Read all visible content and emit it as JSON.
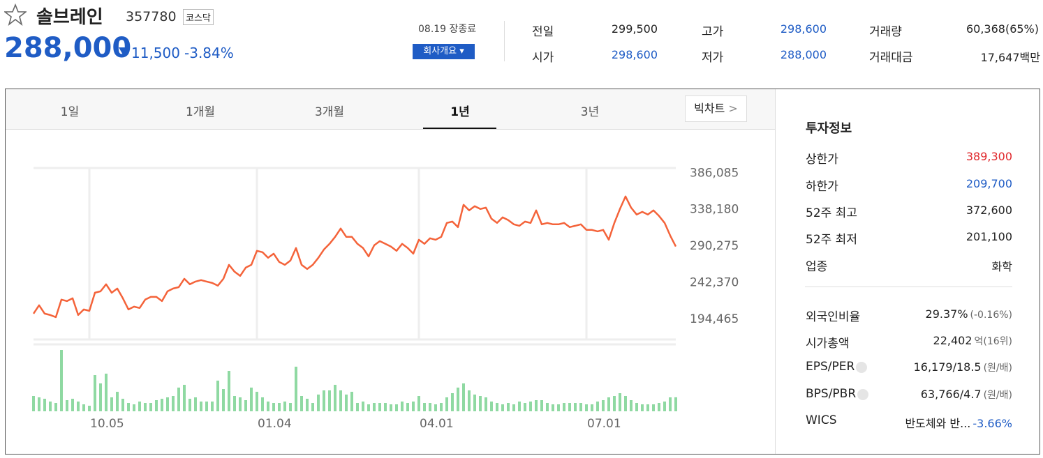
{
  "header": {
    "name": "솔브레인",
    "code": "357780",
    "market": "코스닥",
    "price": "288,000",
    "change": "11,500",
    "change_rate": "-3.84%"
  },
  "status": "08.19 장종료",
  "company_button": "회사개요",
  "quote": [
    {
      "label": "전일",
      "value": "299,500"
    },
    {
      "label": "시가",
      "value": "298,600"
    },
    {
      "label": "고가",
      "value": "298,600"
    },
    {
      "label": "저가",
      "value": "288,000"
    },
    {
      "label": "거래량",
      "value": "60,368(65%)"
    },
    {
      "label": "거래대금",
      "value": "17,647",
      "unit": "백만"
    }
  ],
  "chart_tabs": {
    "tabs": [
      "1일",
      "1개월",
      "3개월",
      "1년",
      "3년"
    ],
    "active": 3,
    "big_chart": "빅차트"
  },
  "chart_data": {
    "type": "line",
    "series": [
      {
        "color": "#f4633a",
        "values": [
          199900,
          210900,
          199900,
          198100,
          195400,
          218300,
          216400,
          220100,
          198100,
          205400,
          203600,
          227400,
          229200,
          238400,
          227400,
          232900,
          220100,
          205400,
          209100,
          207300,
          218300,
          221900,
          221900,
          216400,
          229200,
          232900,
          234700,
          245700,
          238400,
          242000,
          243900,
          242000,
          240200,
          236600,
          245700,
          264000,
          254900,
          249400,
          260300,
          264000,
          282300,
          280500,
          273200,
          278600,
          267700,
          264000,
          269500,
          286000,
          264000,
          258500,
          264000,
          273200,
          284100,
          291500,
          300600,
          311600,
          300600,
          300600,
          291500,
          286000,
          275000,
          289600,
          295100,
          291500,
          287800,
          282300,
          291500,
          286000,
          278600,
          296900,
          291500,
          298800,
          296900,
          300600,
          318900,
          320700,
          313400,
          342700,
          335400,
          340900,
          337200,
          339000,
          324400,
          318900,
          326200,
          322600,
          317100,
          315200,
          320700,
          318900,
          335400,
          317100,
          318900,
          317100,
          317100,
          318900,
          313400,
          315200,
          317100,
          309800,
          309800,
          307900,
          309800,
          296900,
          318900,
          337200,
          353700,
          339000,
          329900,
          333500,
          329900,
          335400,
          328100,
          318900,
          302400,
          288000
        ]
      },
      {
        "type": "bar",
        "axis": "y2",
        "color": "#8fd9a2",
        "values": [
          66000,
          60000,
          54000,
          42000,
          36000,
          264000,
          48000,
          54000,
          42000,
          30000,
          24000,
          156000,
          120000,
          162000,
          60000,
          84000,
          54000,
          36000,
          30000,
          42000,
          36000,
          36000,
          48000,
          54000,
          60000,
          66000,
          102000,
          114000,
          54000,
          60000,
          42000,
          42000,
          42000,
          132000,
          96000,
          174000,
          66000,
          60000,
          48000,
          102000,
          84000,
          60000,
          42000,
          36000,
          36000,
          42000,
          36000,
          192000,
          66000,
          54000,
          36000,
          72000,
          90000,
          90000,
          114000,
          90000,
          72000,
          84000,
          36000,
          42000,
          30000,
          36000,
          36000,
          36000,
          30000,
          30000,
          42000,
          36000,
          42000,
          66000,
          36000,
          36000,
          30000,
          36000,
          60000,
          78000,
          102000,
          120000,
          90000,
          72000,
          66000,
          60000,
          42000,
          36000,
          30000,
          36000,
          30000,
          42000,
          36000,
          42000,
          48000,
          48000,
          36000,
          30000,
          30000,
          36000,
          36000,
          36000,
          36000,
          30000,
          30000,
          42000,
          48000,
          60000,
          66000,
          78000,
          66000,
          48000,
          36000,
          30000,
          30000,
          30000,
          36000,
          42000,
          60000,
          60368
        ]
      }
    ],
    "ylim": [
      166000,
      391000
    ],
    "yticks": [
      {
        "value": 194465,
        "label": "194,465"
      },
      {
        "value": 242370,
        "label": "242,370"
      },
      {
        "value": 290275,
        "label": "290,275"
      },
      {
        "value": 338180,
        "label": "338,180"
      },
      {
        "value": 386085,
        "label": "386,085"
      }
    ],
    "y2lim": [
      0,
      300000
    ],
    "xlim": [
      0,
      115
    ],
    "xticks": [
      {
        "value": 10,
        "label": "10.05"
      },
      {
        "value": 40,
        "label": "01.04"
      },
      {
        "value": 69,
        "label": "04.01"
      },
      {
        "value": 99,
        "label": "07.01"
      }
    ],
    "grid": true
  },
  "info": {
    "title": "투자정보",
    "rows": [
      {
        "label": "상한가",
        "value": "389,300"
      },
      {
        "label": "하한가",
        "value": "209,700"
      },
      {
        "label": "52주 최고",
        "value": "372,600"
      },
      {
        "label": "52주 최저",
        "value": "201,100"
      },
      {
        "label": "업종",
        "value": "화학"
      }
    ],
    "rows2": [
      {
        "label": "외국인비율",
        "value": "29.37%",
        "extra": "(-0.16%)"
      },
      {
        "label": "시가총액",
        "value": "22,402",
        "extra": "억(16위)"
      },
      {
        "label": "EPS/PER",
        "value": "16,179/18.5",
        "extra": "(원/배)"
      },
      {
        "label": "BPS/PBR",
        "value": "63,766/4.7",
        "extra": "(원/배)"
      },
      {
        "label": "WICS",
        "value": "반도체와 반...",
        "extra": "-3.66%"
      }
    ]
  }
}
